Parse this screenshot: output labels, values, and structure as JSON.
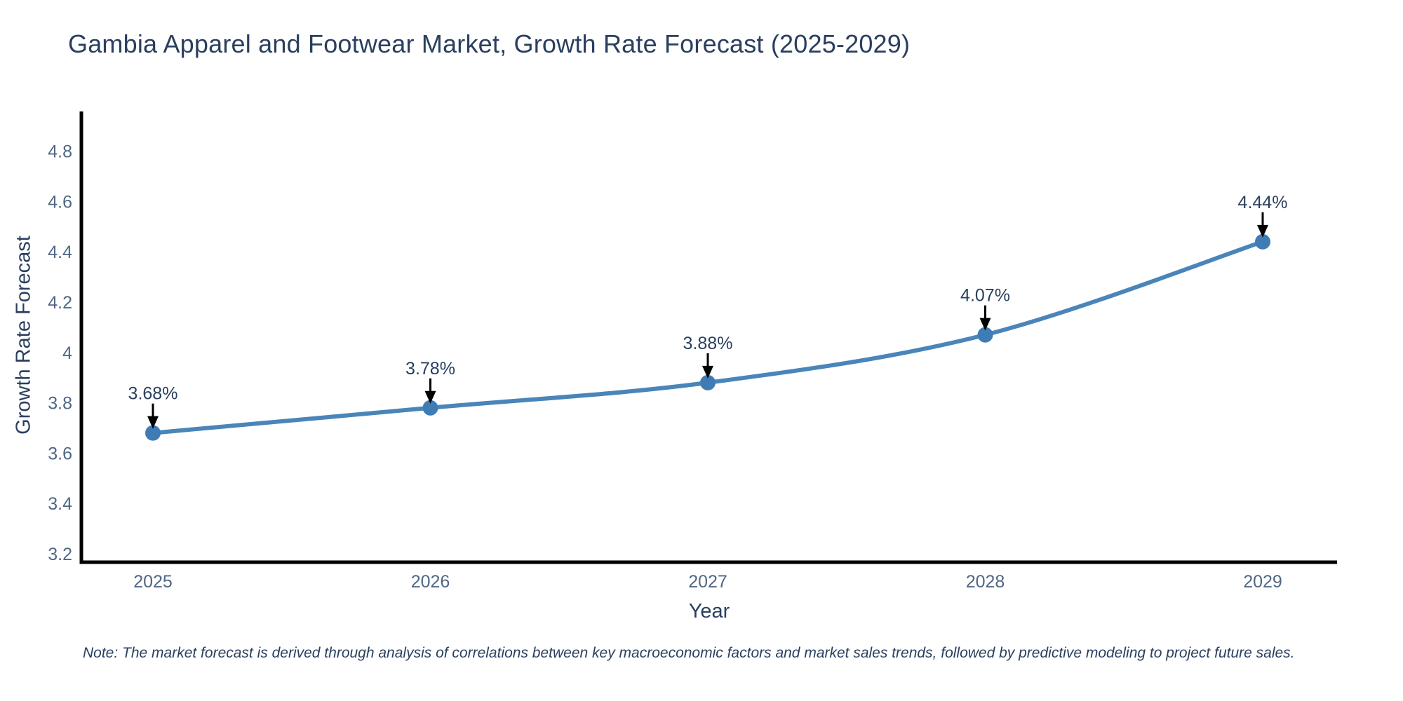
{
  "note": "Note: The market forecast is derived through analysis of correlations between key macroeconomic factors and market sales trends, followed by predictive modeling to project future sales.",
  "chart_data": {
    "type": "line",
    "title": "Gambia Apparel and Footwear Market, Growth Rate Forecast (2025-2029)",
    "xlabel": "Year",
    "ylabel": "Growth Rate Forecast",
    "x": [
      2025,
      2026,
      2027,
      2028,
      2029
    ],
    "values": [
      3.68,
      3.78,
      3.88,
      4.07,
      4.44
    ],
    "point_labels": [
      "3.68%",
      "3.78%",
      "3.88%",
      "4.07%",
      "4.44%"
    ],
    "xtick_labels": [
      "2025",
      "2026",
      "2027",
      "2028",
      "2029"
    ],
    "yticks": [
      3.2,
      3.4,
      3.6,
      3.8,
      4,
      4.2,
      4.4,
      4.6,
      4.8
    ],
    "ytick_labels": [
      "3.2",
      "3.4",
      "3.6",
      "3.8",
      "4",
      "4.2",
      "4.4",
      "4.6",
      "4.8"
    ],
    "ylim": [
      3.2,
      4.8
    ],
    "grid": false,
    "legend_position": "none",
    "line_color": "#4a85ba",
    "marker_color": "#3f7cb5",
    "axis_color": "#000000",
    "annotation_color": "#000000",
    "title_color": "#2a3f5f",
    "label_color": "#2a3f5f",
    "tick_color": "#506784"
  }
}
